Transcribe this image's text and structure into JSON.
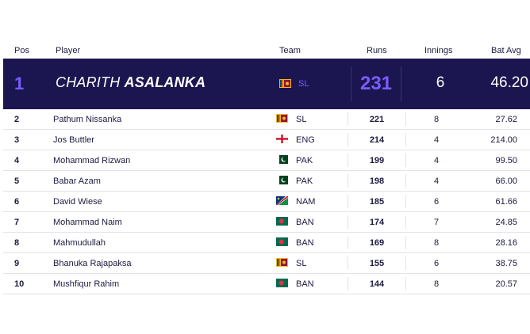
{
  "columns": {
    "pos": "Pos",
    "player": "Player",
    "team": "Team",
    "runs": "Runs",
    "innings": "Innings",
    "bat_avg": "Bat Avg"
  },
  "leader": {
    "pos": "1",
    "first_name": "CHARITH",
    "last_name": "ASALANKA",
    "team": "SL",
    "flag": "sri-lanka-flag-icon",
    "runs": "231",
    "innings": "6",
    "bat_avg": "46.20"
  },
  "rows": [
    {
      "pos": "2",
      "player": "Pathum Nissanka",
      "team": "SL",
      "flag": "sri-lanka-flag-icon",
      "runs": "221",
      "innings": "8",
      "bat_avg": "27.62"
    },
    {
      "pos": "3",
      "player": "Jos Buttler",
      "team": "ENG",
      "flag": "england-flag-icon",
      "runs": "214",
      "innings": "4",
      "bat_avg": "214.00"
    },
    {
      "pos": "4",
      "player": "Mohammad Rizwan",
      "team": "PAK",
      "flag": "pakistan-flag-icon",
      "runs": "199",
      "innings": "4",
      "bat_avg": "99.50"
    },
    {
      "pos": "5",
      "player": "Babar Azam",
      "team": "PAK",
      "flag": "pakistan-flag-icon",
      "runs": "198",
      "innings": "4",
      "bat_avg": "66.00"
    },
    {
      "pos": "6",
      "player": "David Wiese",
      "team": "NAM",
      "flag": "namibia-flag-icon",
      "runs": "185",
      "innings": "6",
      "bat_avg": "61.66"
    },
    {
      "pos": "7",
      "player": "Mohammad Naim",
      "team": "BAN",
      "flag": "bangladesh-flag-icon",
      "runs": "174",
      "innings": "7",
      "bat_avg": "24.85"
    },
    {
      "pos": "8",
      "player": "Mahmudullah",
      "team": "BAN",
      "flag": "bangladesh-flag-icon",
      "runs": "169",
      "innings": "8",
      "bat_avg": "28.16"
    },
    {
      "pos": "9",
      "player": "Bhanuka Rajapaksa",
      "team": "SL",
      "flag": "sri-lanka-flag-icon",
      "runs": "155",
      "innings": "6",
      "bat_avg": "38.75"
    },
    {
      "pos": "10",
      "player": "Mushfiqur Rahim",
      "team": "BAN",
      "flag": "bangladesh-flag-icon",
      "runs": "144",
      "innings": "8",
      "bat_avg": "20.57"
    }
  ],
  "colors": {
    "leader_bg": "#1b1650",
    "accent": "#7b5cff",
    "text": "#1b1a3e",
    "divider": "#e3e3ea"
  }
}
